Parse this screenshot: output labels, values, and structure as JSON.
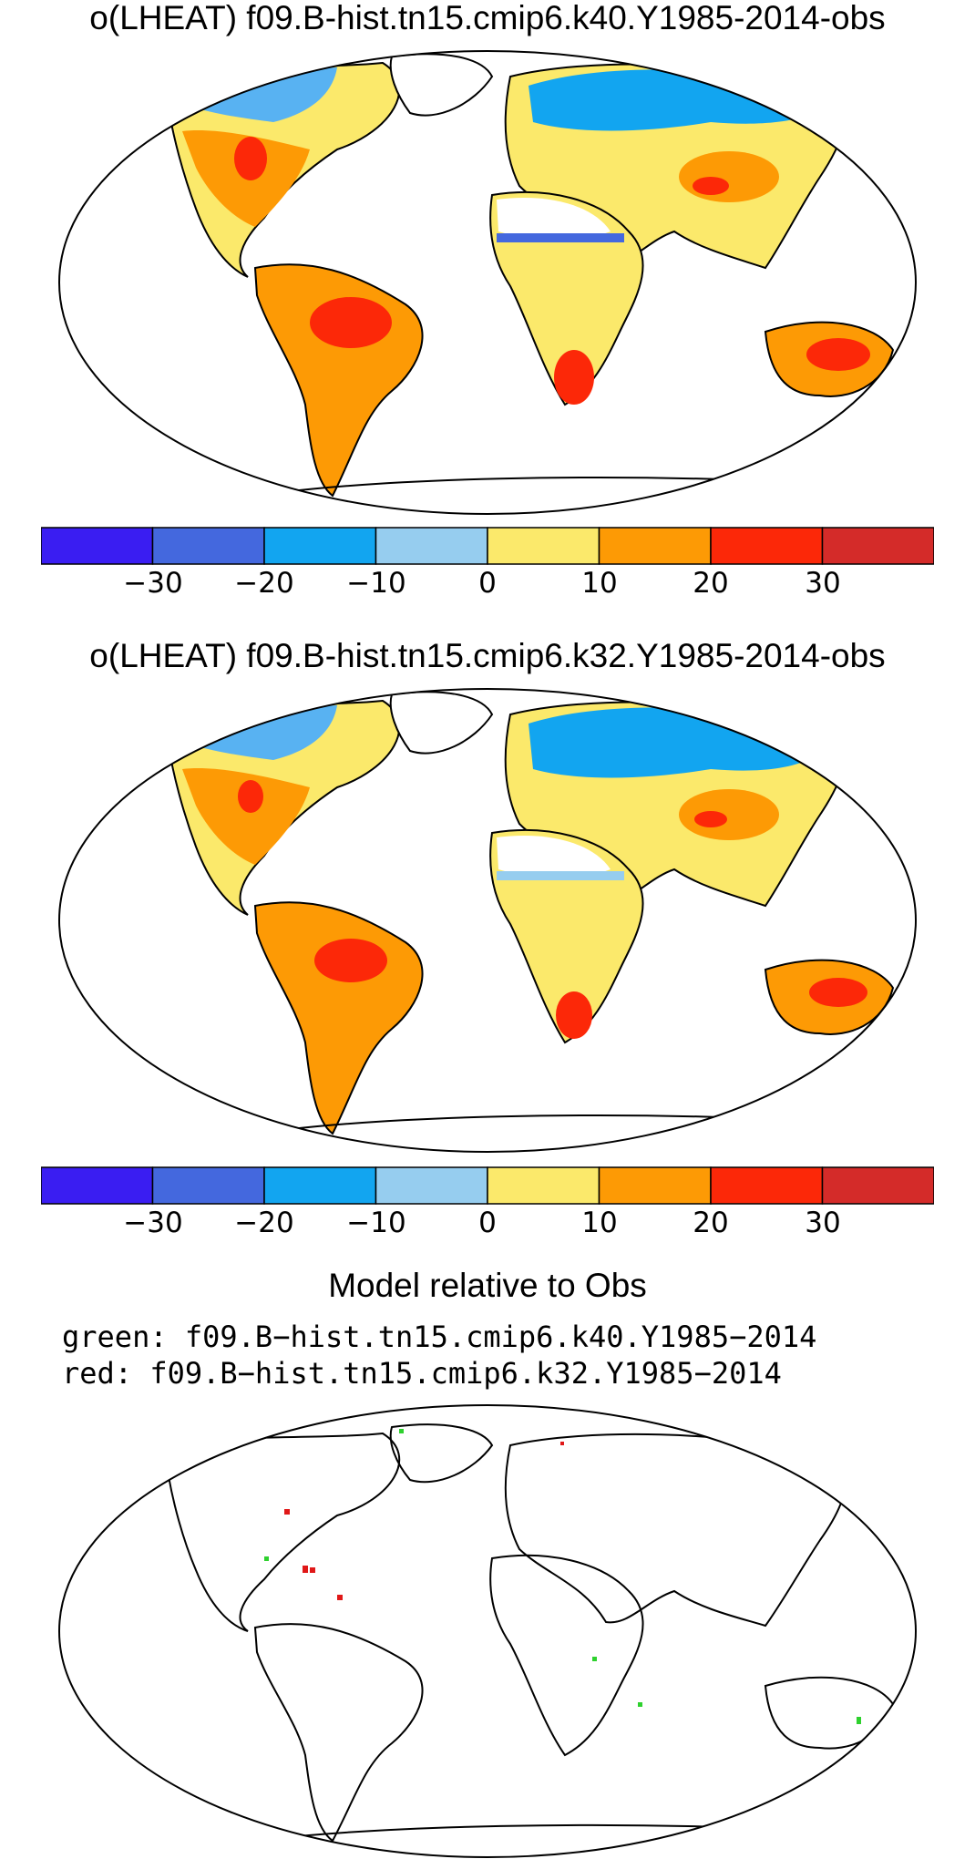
{
  "panels": [
    {
      "title": "o(LHEAT) f09.B-hist.tn15.cmip6.k40.Y1985-2014-obs",
      "colorbar_ticks": [
        "−30",
        "−20",
        "−10",
        "0",
        "10",
        "20",
        "30"
      ]
    },
    {
      "title": "o(LHEAT) f09.B-hist.tn15.cmip6.k32.Y1985-2014-obs",
      "colorbar_ticks": [
        "−30",
        "−20",
        "−10",
        "0",
        "10",
        "20",
        "30"
      ]
    }
  ],
  "colorbar_colors": [
    "#3a1df2",
    "#4468de",
    "#12a5f0",
    "#96cdef",
    "#fbe96b",
    "#fd9a05",
    "#fc2808",
    "#d42b29"
  ],
  "comparison": {
    "title": "Model relative to Obs",
    "green_label": "green: f09.B−hist.tn15.cmip6.k40.Y1985−2014",
    "red_label": "red: f09.B−hist.tn15.cmip6.k32.Y1985−2014"
  }
}
